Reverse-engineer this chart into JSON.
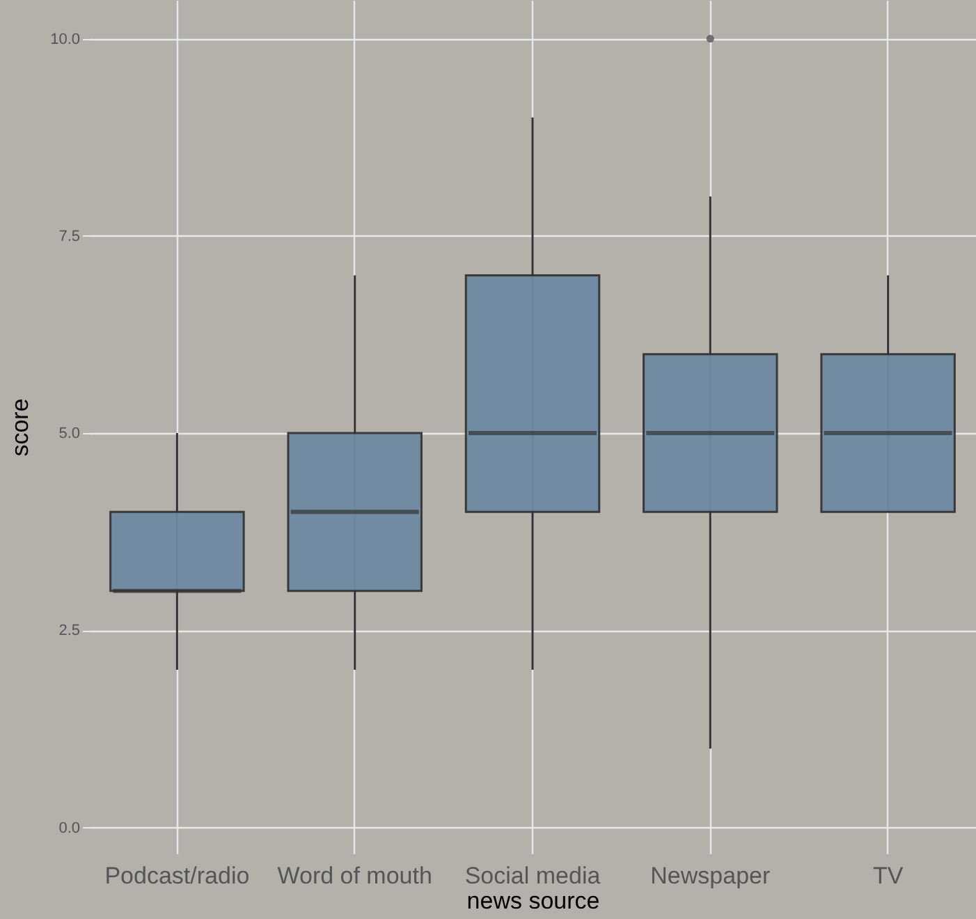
{
  "chart_data": {
    "type": "box",
    "xlabel": "news source",
    "ylabel": "score",
    "categories": [
      "Podcast/radio",
      "Word of mouth",
      "Social media",
      "Newspaper",
      "TV"
    ],
    "series": [
      {
        "color": "#6e8aa2",
        "boxes": [
          {
            "low": 2,
            "q1": 3,
            "median": 3,
            "q3": 4,
            "high": 5
          },
          {
            "low": 2,
            "q1": 3,
            "median": 4,
            "q3": 5,
            "high": 7
          },
          {
            "low": 2,
            "q1": 4,
            "median": 5,
            "q3": 7,
            "high": 9
          },
          {
            "low": 1,
            "q1": 4,
            "median": 5,
            "q3": 6,
            "high": 8,
            "outliers": [
              10
            ]
          },
          {
            "low": 4,
            "q1": 4,
            "median": 5,
            "q3": 6,
            "high": 7
          }
        ]
      }
    ],
    "ylim": [
      -0.33,
      10.49
    ],
    "yticks": [
      {
        "value": 0,
        "label": "0.0"
      },
      2.5,
      {
        "value": 5,
        "label": "5.0"
      },
      7.5,
      {
        "value": 10,
        "label": "10.0"
      }
    ],
    "grid": true
  }
}
